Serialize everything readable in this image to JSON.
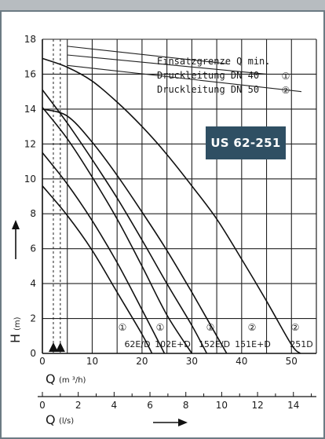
{
  "badge": "US 62-251",
  "chart_data": {
    "type": "line",
    "title": "",
    "xlabel": "Q",
    "xunit": "(m ³/h)",
    "x2label": "Q",
    "x2unit": "(l/s)",
    "ylabel": "H",
    "yunit": "(m)",
    "xlim": [
      0,
      55
    ],
    "ylim": [
      0,
      18
    ],
    "x2lim": [
      0,
      15.28
    ],
    "grid": true,
    "x_ticks": [
      0,
      10,
      20,
      30,
      40,
      50
    ],
    "y_ticks": [
      0,
      2,
      4,
      6,
      8,
      10,
      12,
      14,
      16,
      18
    ],
    "x2_ticks": [
      0,
      2,
      4,
      6,
      8,
      10,
      12,
      14
    ],
    "legend": [
      {
        "label": "Einsatzgrenze Q min.",
        "marker": ""
      },
      {
        "label": "Druckleitung DN 40",
        "marker": "①"
      },
      {
        "label": "Druckleitung DN 50",
        "marker": "②"
      }
    ],
    "series": [
      {
        "name": "62E/D",
        "marker": "①",
        "points": [
          [
            0,
            9.6
          ],
          [
            5,
            7.9
          ],
          [
            10,
            5.9
          ],
          [
            15,
            3.5
          ],
          [
            20,
            1.1
          ],
          [
            22,
            0
          ]
        ]
      },
      {
        "name": "102E+D",
        "marker": "①",
        "points": [
          [
            0,
            11.5
          ],
          [
            5,
            9.7
          ],
          [
            10,
            7.6
          ],
          [
            15,
            5.2
          ],
          [
            20,
            2.5
          ],
          [
            24.5,
            0
          ]
        ]
      },
      {
        "name": "152E/D",
        "marker": "①",
        "points": [
          [
            0,
            14.1
          ],
          [
            5,
            12.3
          ],
          [
            10,
            10.1
          ],
          [
            15,
            7.7
          ],
          [
            20,
            5.0
          ],
          [
            25,
            2.2
          ],
          [
            30,
            0
          ]
        ]
      },
      {
        "name": "151E+D",
        "marker": "②",
        "points": [
          [
            0,
            15.1
          ],
          [
            5,
            13.2
          ],
          [
            10,
            11.1
          ],
          [
            15,
            8.9
          ],
          [
            20,
            6.5
          ],
          [
            25,
            4.0
          ],
          [
            30,
            1.6
          ],
          [
            33,
            0
          ]
        ]
      },
      {
        "name": "251D",
        "marker": "②",
        "points": [
          [
            0,
            16.9
          ],
          [
            5,
            16.4
          ],
          [
            10,
            15.6
          ],
          [
            15,
            14.4
          ],
          [
            20,
            13.0
          ],
          [
            25,
            11.4
          ],
          [
            30,
            9.6
          ],
          [
            35,
            7.7
          ],
          [
            40,
            5.4
          ],
          [
            45,
            3.0
          ],
          [
            50,
            0.5
          ],
          [
            51.8,
            0
          ]
        ]
      }
    ],
    "extra_curves": [
      {
        "points": [
          [
            0,
            14.0
          ],
          [
            5,
            13.6
          ],
          [
            10,
            12.1
          ],
          [
            15,
            10.2
          ],
          [
            20,
            8.1
          ],
          [
            25,
            5.9
          ],
          [
            30,
            3.5
          ],
          [
            35,
            1.0
          ],
          [
            37,
            0
          ]
        ]
      }
    ],
    "dn_lines": [
      {
        "points": [
          [
            5,
            17.6
          ],
          [
            37,
            16.6
          ]
        ]
      },
      {
        "points": [
          [
            5,
            17.1
          ],
          [
            45,
            16.0
          ]
        ]
      },
      {
        "points": [
          [
            5,
            16.5
          ],
          [
            52,
            15.0
          ]
        ]
      }
    ],
    "qmin_lines": [
      2.2,
      3.6
    ]
  }
}
